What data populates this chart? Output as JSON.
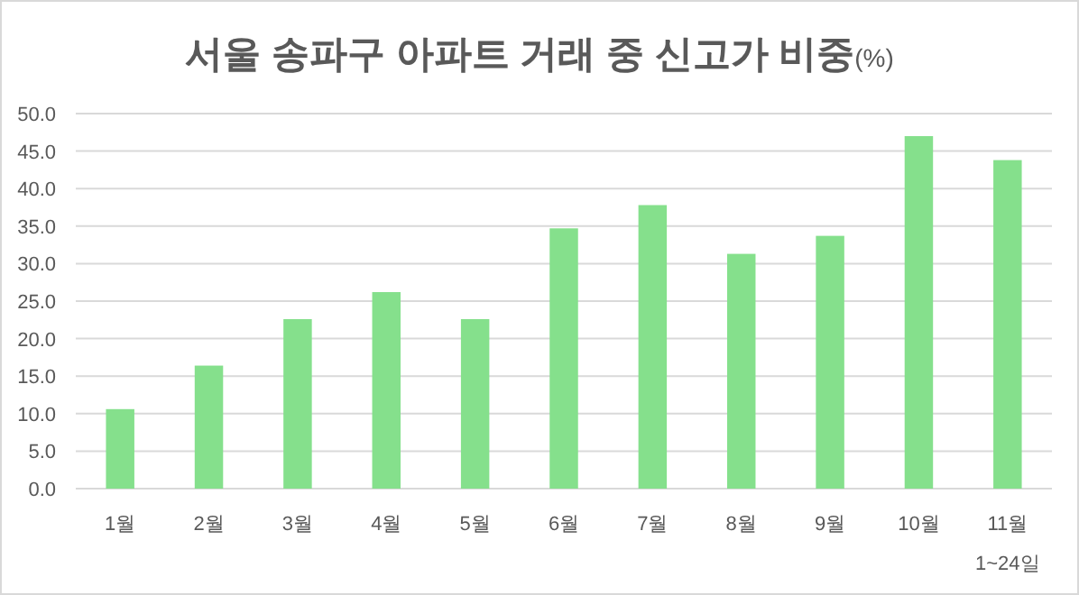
{
  "chart_data": {
    "type": "bar",
    "title": "서울 송파구 아파트 거래 중 신고가 비중(%)",
    "categories": [
      "1월",
      "2월",
      "3월",
      "4월",
      "5월",
      "6월",
      "7월",
      "8월",
      "9월",
      "10월",
      "11월"
    ],
    "values": [
      10.6,
      16.4,
      22.6,
      26.2,
      22.6,
      34.7,
      37.8,
      31.3,
      33.7,
      47.0,
      43.8
    ],
    "color": "#85e08c",
    "ylim": [
      0,
      50
    ],
    "yticks": [
      {
        "value": 0,
        "label": "0.0"
      },
      {
        "value": 5,
        "label": "5.0"
      },
      {
        "value": 10,
        "label": "10.0"
      },
      {
        "value": 15,
        "label": "15.0"
      },
      {
        "value": 20,
        "label": "20.0"
      },
      {
        "value": 25,
        "label": "25.0"
      },
      {
        "value": 30,
        "label": "30.0"
      },
      {
        "value": 35,
        "label": "35.0"
      },
      {
        "value": 40,
        "label": "40.0"
      },
      {
        "value": 45,
        "label": "45.0"
      },
      {
        "value": 50,
        "label": "50.0"
      }
    ],
    "grid": "y",
    "annotations": [
      "1~24일"
    ]
  }
}
